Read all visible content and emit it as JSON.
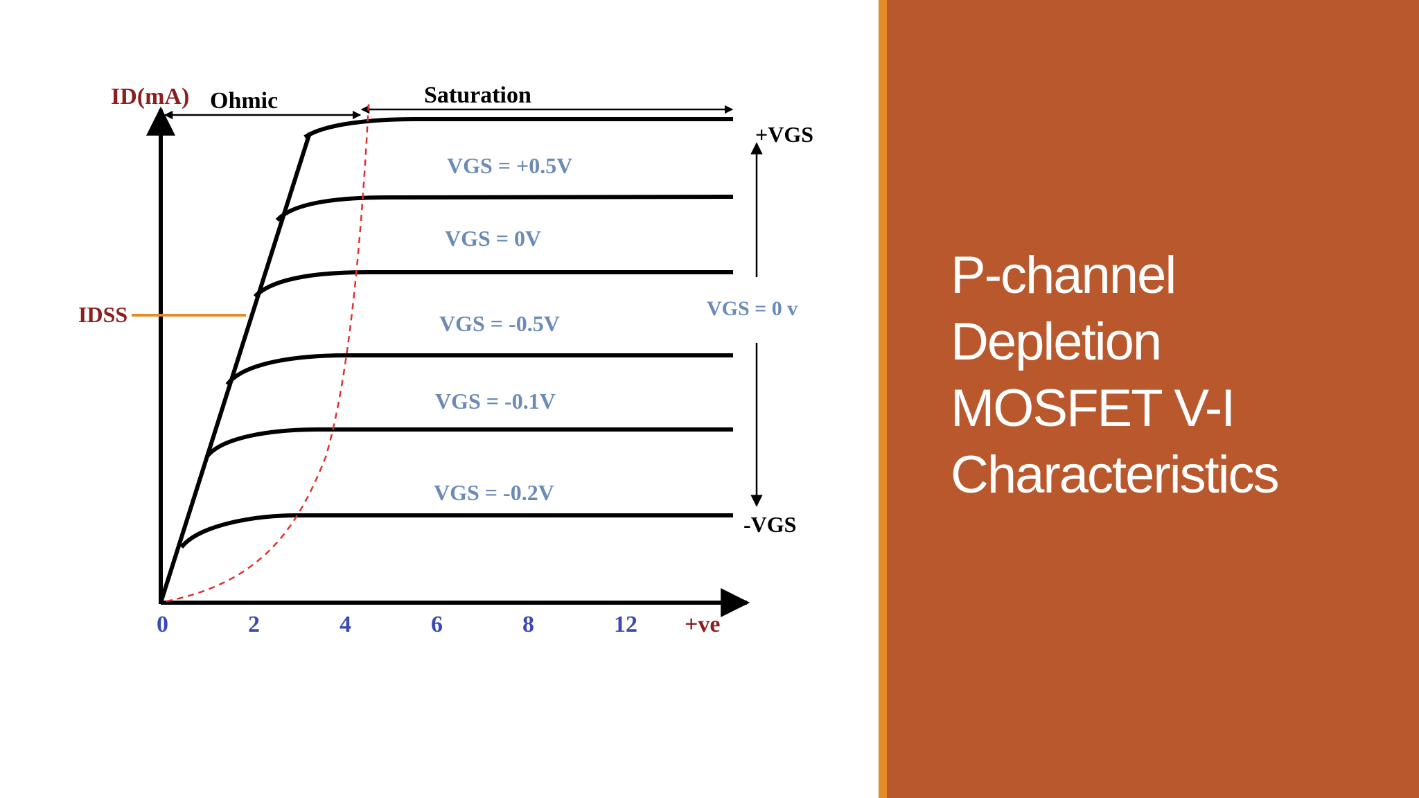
{
  "slide": {
    "title_lines": [
      "P-channel",
      "Depletion",
      "MOSFET V-I",
      "Characteristics"
    ]
  },
  "diagram": {
    "y_axis_label": "ID(mA)",
    "region_ohmic": "Ohmic",
    "region_saturation": "Saturation",
    "idss_label": "IDSS",
    "plus_vgs": "+VGS",
    "minus_vgs": "-VGS",
    "vgs_axis_label": "VGS = 0 v",
    "x_ticks": [
      "0",
      "2",
      "4",
      "6",
      "8",
      "12",
      "+ve"
    ],
    "curves": [
      {
        "label": "VGS = +0.5V"
      },
      {
        "label": "VGS = 0V"
      },
      {
        "label": "VGS = -0.5V"
      },
      {
        "label": "VGS = -0.1V"
      },
      {
        "label": "VGS = -0.2V"
      },
      {
        "label": ""
      }
    ]
  },
  "colors": {
    "panel": "#b9582d",
    "accent": "#e58a26",
    "curve_label": "#6b8ab5",
    "tick_label": "#3a4bb0",
    "axis_label": "#8b1e1e",
    "pinch_off": "#e03030",
    "idss_line": "#e58a26"
  }
}
